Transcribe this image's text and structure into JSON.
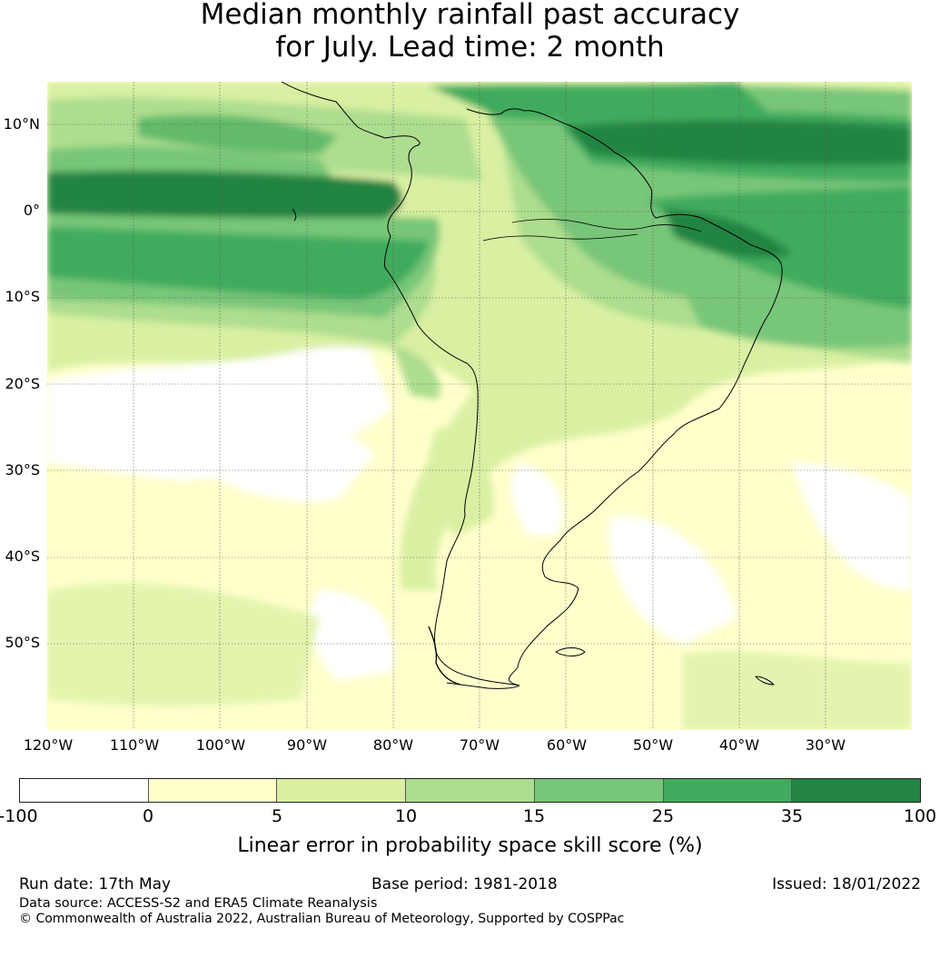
{
  "title": {
    "line1": "Median monthly rainfall past accuracy",
    "line2": "for July. Lead time: 2 month"
  },
  "map": {
    "region": "South America",
    "extent": {
      "lon_min": -123,
      "lon_max": -23,
      "lat_min": -60,
      "lat_max": 15
    },
    "lat_ticks": [
      {
        "lat": 10,
        "label": "10°N"
      },
      {
        "lat": 0,
        "label": "0°"
      },
      {
        "lat": -10,
        "label": "10°S"
      },
      {
        "lat": -20,
        "label": "20°S"
      },
      {
        "lat": -30,
        "label": "30°S"
      },
      {
        "lat": -40,
        "label": "40°S"
      },
      {
        "lat": -50,
        "label": "50°S"
      }
    ],
    "lon_ticks": [
      {
        "lon": -120,
        "label": "120°W"
      },
      {
        "lon": -110,
        "label": "110°W"
      },
      {
        "lon": -100,
        "label": "100°W"
      },
      {
        "lon": -90,
        "label": "90°W"
      },
      {
        "lon": -80,
        "label": "80°W"
      },
      {
        "lon": -70,
        "label": "70°W"
      },
      {
        "lon": -60,
        "label": "60°W"
      },
      {
        "lon": -50,
        "label": "50°W"
      },
      {
        "lon": -40,
        "label": "40°W"
      },
      {
        "lon": -30,
        "label": "30°W"
      }
    ]
  },
  "legend": {
    "colors": [
      "#ffffff",
      "#ffffcc",
      "#d9f0a3",
      "#addd8e",
      "#78c679",
      "#41ab5d",
      "#238443"
    ],
    "ticks": [
      "-100",
      "0",
      "5",
      "10",
      "15",
      "25",
      "35",
      "100"
    ],
    "label": "Linear error in probability space skill score (%)"
  },
  "footer": {
    "run_date": "Run date: 17th May",
    "base_period": "Base period: 1981-2018",
    "issued": "Issued: 18/01/2022",
    "data_source": "Data source: ACCESS-S2 and ERA5 Climate Reanalysis",
    "copyright": "© Commonwealth of Australia 2022, Australian Bureau of Meteorology, Supported by COSPPac"
  }
}
